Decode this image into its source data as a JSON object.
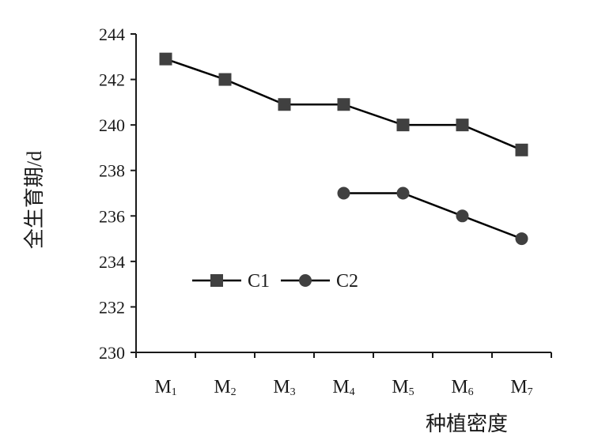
{
  "chart_data": {
    "type": "line",
    "title": "",
    "xlabel": "种植密度",
    "ylabel": "全生育期/d",
    "categories": [
      "M1",
      "M2",
      "M3",
      "M4",
      "M5",
      "M6",
      "M7"
    ],
    "category_labels": [
      {
        "base": "M",
        "sub": "1"
      },
      {
        "base": "M",
        "sub": "2"
      },
      {
        "base": "M",
        "sub": "3"
      },
      {
        "base": "M",
        "sub": "4"
      },
      {
        "base": "M",
        "sub": "5"
      },
      {
        "base": "M",
        "sub": "6"
      },
      {
        "base": "M",
        "sub": "7"
      }
    ],
    "yticks": [
      "230",
      "232",
      "234",
      "236",
      "238",
      "240",
      "242",
      "244"
    ],
    "ylim": [
      230,
      244
    ],
    "grid": false,
    "legend_position": "center-left, inside plot",
    "series": [
      {
        "name": "C1",
        "marker": "square",
        "color": "#404040",
        "values": [
          242.9,
          242.0,
          240.9,
          240.9,
          240.0,
          240.0,
          238.9
        ]
      },
      {
        "name": "C2",
        "marker": "circle",
        "color": "#404040",
        "values": [
          null,
          null,
          null,
          237.0,
          237.0,
          236.0,
          235.0
        ]
      }
    ]
  }
}
